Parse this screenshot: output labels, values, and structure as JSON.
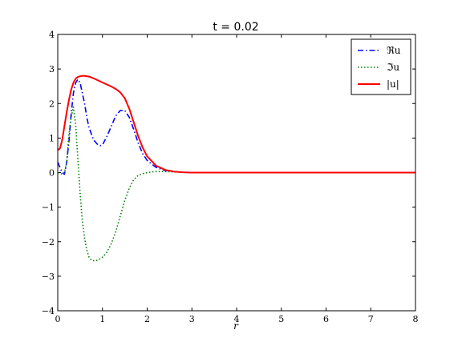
{
  "chart_data": {
    "type": "line",
    "title": "t = 0.02",
    "xlabel": "r",
    "ylabel": "",
    "xlim": [
      0,
      8
    ],
    "ylim": [
      -4,
      4
    ],
    "xticks": [
      "0",
      "1",
      "2",
      "3",
      "4",
      "5",
      "6",
      "7",
      "8"
    ],
    "yticks": [
      "−4",
      "−3",
      "−2",
      "−1",
      "0",
      "1",
      "2",
      "3",
      "4"
    ],
    "legend_position": "top-right",
    "series": [
      {
        "name": "ℜu",
        "color": "#0000ff",
        "style": "dashdot",
        "x": [
          0,
          0.05,
          0.1,
          0.15,
          0.2,
          0.25,
          0.3,
          0.35,
          0.4,
          0.45,
          0.5,
          0.55,
          0.6,
          0.65,
          0.7,
          0.8,
          0.9,
          0.95,
          1.0,
          1.1,
          1.2,
          1.3,
          1.4,
          1.5,
          1.6,
          1.7,
          1.8,
          1.9,
          2.0,
          2.2,
          2.4,
          2.6,
          2.8,
          3.0,
          3.5,
          4,
          5,
          6,
          7,
          8
        ],
        "y": [
          0.3,
          0.15,
          0.0,
          -0.05,
          0.3,
          0.9,
          1.7,
          2.3,
          2.6,
          2.7,
          2.6,
          2.3,
          2.0,
          1.6,
          1.3,
          0.95,
          0.8,
          0.78,
          0.8,
          1.05,
          1.35,
          1.65,
          1.8,
          1.8,
          1.6,
          1.25,
          0.85,
          0.55,
          0.35,
          0.15,
          0.06,
          0.03,
          0.01,
          0.0,
          0.0,
          0.0,
          0.0,
          0.0,
          0.0,
          0.0
        ]
      },
      {
        "name": "ℑu",
        "color": "#008000",
        "style": "dotted",
        "x": [
          0,
          0.05,
          0.1,
          0.15,
          0.2,
          0.25,
          0.3,
          0.35,
          0.4,
          0.45,
          0.5,
          0.55,
          0.6,
          0.65,
          0.7,
          0.75,
          0.8,
          0.85,
          0.9,
          1.0,
          1.1,
          1.2,
          1.3,
          1.4,
          1.5,
          1.6,
          1.7,
          1.8,
          1.9,
          2.0,
          2.1,
          2.2,
          2.4,
          2.6,
          3.0,
          4,
          5,
          6,
          7,
          8
        ],
        "y": [
          0.0,
          -0.02,
          -0.05,
          0.0,
          0.3,
          1.1,
          1.6,
          1.9,
          1.4,
          0.4,
          -0.6,
          -1.4,
          -1.9,
          -2.25,
          -2.45,
          -2.53,
          -2.55,
          -2.55,
          -2.53,
          -2.45,
          -2.3,
          -2.05,
          -1.7,
          -1.25,
          -0.8,
          -0.45,
          -0.2,
          -0.08,
          -0.03,
          0.0,
          0.02,
          0.03,
          0.03,
          0.02,
          0.0,
          0.0,
          0.0,
          0.0,
          0.0,
          0.0
        ]
      },
      {
        "name": "|u|",
        "color": "#ff0000",
        "style": "solid",
        "x": [
          0,
          0.05,
          0.1,
          0.15,
          0.2,
          0.25,
          0.3,
          0.35,
          0.4,
          0.45,
          0.5,
          0.55,
          0.6,
          0.7,
          0.8,
          0.9,
          1.0,
          1.1,
          1.2,
          1.3,
          1.4,
          1.5,
          1.6,
          1.7,
          1.8,
          1.9,
          2.0,
          2.2,
          2.4,
          2.6,
          2.8,
          3.0,
          3.5,
          4,
          5,
          6,
          7,
          8
        ],
        "y": [
          0.65,
          0.7,
          0.95,
          1.35,
          1.75,
          2.1,
          2.4,
          2.6,
          2.72,
          2.77,
          2.79,
          2.8,
          2.8,
          2.78,
          2.73,
          2.67,
          2.61,
          2.55,
          2.49,
          2.42,
          2.32,
          2.15,
          1.85,
          1.45,
          1.05,
          0.72,
          0.47,
          0.2,
          0.08,
          0.03,
          0.01,
          0.0,
          0.0,
          0.0,
          0.0,
          0.0,
          0.0,
          0.0
        ]
      }
    ]
  }
}
